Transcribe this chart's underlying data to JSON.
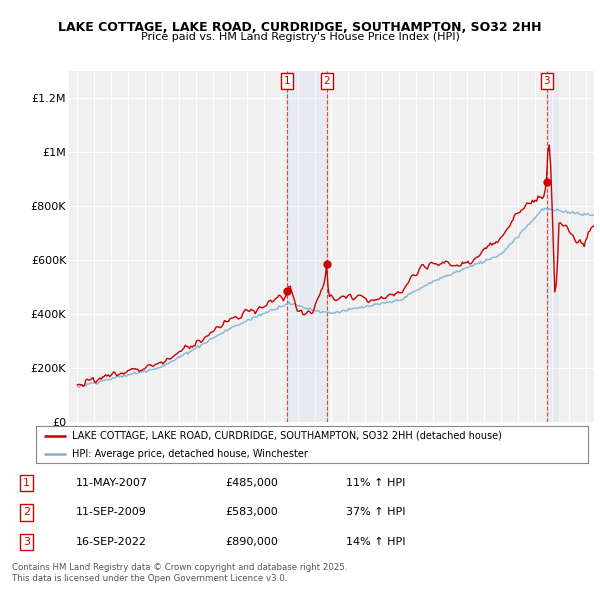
{
  "title": "LAKE COTTAGE, LAKE ROAD, CURDRIDGE, SOUTHAMPTON, SO32 2HH",
  "subtitle": "Price paid vs. HM Land Registry's House Price Index (HPI)",
  "ylim": [
    0,
    1300000
  ],
  "xlim": [
    1994.5,
    2025.5
  ],
  "yticks": [
    0,
    200000,
    400000,
    600000,
    800000,
    1000000,
    1200000
  ],
  "ytick_labels": [
    "£0",
    "£200K",
    "£400K",
    "£600K",
    "£800K",
    "£1M",
    "£1.2M"
  ],
  "xticks": [
    1995,
    1996,
    1997,
    1998,
    1999,
    2000,
    2001,
    2002,
    2003,
    2004,
    2005,
    2006,
    2007,
    2008,
    2009,
    2010,
    2011,
    2012,
    2013,
    2014,
    2015,
    2016,
    2017,
    2018,
    2019,
    2020,
    2021,
    2022,
    2023,
    2024,
    2025
  ],
  "plot_bg_color": "#f0f0f0",
  "grid_color": "#ffffff",
  "red_color": "#cc0000",
  "blue_color": "#7bafd4",
  "sale1_year": 2007.37,
  "sale2_year": 2009.71,
  "sale3_year": 2022.71,
  "sale1_price": 485000,
  "sale2_price": 583000,
  "sale3_price": 890000,
  "legend_entries": [
    "LAKE COTTAGE, LAKE ROAD, CURDRIDGE, SOUTHAMPTON, SO32 2HH (detached house)",
    "HPI: Average price, detached house, Winchester"
  ],
  "table_entries": [
    {
      "num": "1",
      "date": "11-MAY-2007",
      "price": "£485,000",
      "hpi": "11% ↑ HPI"
    },
    {
      "num": "2",
      "date": "11-SEP-2009",
      "price": "£583,000",
      "hpi": "37% ↑ HPI"
    },
    {
      "num": "3",
      "date": "16-SEP-2022",
      "price": "£890,000",
      "hpi": "14% ↑ HPI"
    }
  ],
  "footnote": "Contains HM Land Registry data © Crown copyright and database right 2025.\nThis data is licensed under the Open Government Licence v3.0."
}
